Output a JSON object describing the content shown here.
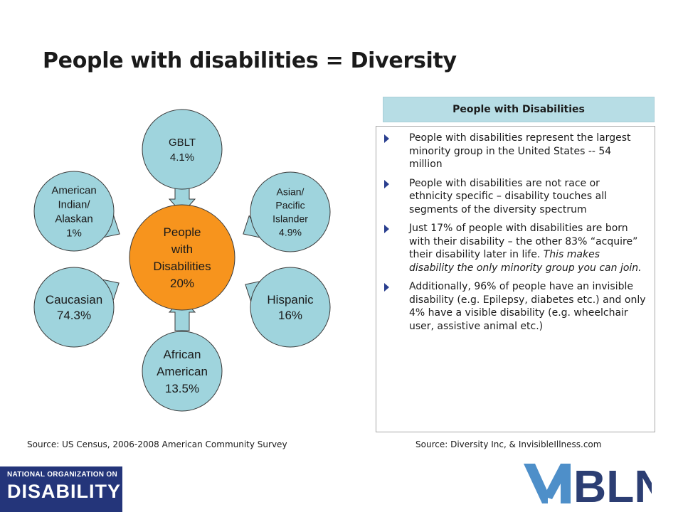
{
  "slide": {
    "title": "People with disabilities = Diversity"
  },
  "diagram": {
    "center": {
      "lines": [
        "People",
        "with",
        "Disabilities",
        "20%"
      ]
    },
    "nodes": [
      {
        "lines": [
          "GBLT",
          "4.1%"
        ]
      },
      {
        "lines": [
          "Asian/",
          "Pacific",
          "Islander",
          "4.9%"
        ]
      },
      {
        "lines": [
          "Hispanic",
          "16%"
        ]
      },
      {
        "lines": [
          "African",
          "American",
          "13.5%"
        ]
      },
      {
        "lines": [
          "Caucasian",
          "74.3%"
        ]
      },
      {
        "lines": [
          "American",
          "Indian/",
          "Alaskan",
          "1%"
        ]
      }
    ],
    "colors": {
      "center_fill": "#f7941d",
      "node_fill": "#9fd4dd",
      "arrow_fill": "#9fd4dd",
      "outline": "#3a3a3a"
    }
  },
  "panel": {
    "header": "People with Disabilities",
    "bullets": [
      {
        "text": "People with disabilities represent the largest minority group in the United States  -- 54 million",
        "italic": ""
      },
      {
        "text": "People with disabilities are not race or ethnicity specific – disability touches all segments of the diversity spectrum",
        "italic": ""
      },
      {
        "text": "Just 17% of people with disabilities are born with their disability – the other 83% “acquire” their disability later in life.  ",
        "italic": "This makes disability the only minority group you can join."
      },
      {
        "text": "Additionally, 96% of people have an invisible disability (e.g. Epilepsy, diabetes etc.) and  only 4% have a visible disability (e.g. wheelchair user, assistive animal etc.)",
        "italic": ""
      }
    ],
    "bullet_icon": "triangle-right-icon",
    "bullet_color": "#2a3f8f"
  },
  "sources": {
    "left": "Source: US Census, 2006-2008 American Community Survey",
    "right": "Source: Diversity Inc, & InvisibleIllness.com"
  },
  "logos": {
    "nod": {
      "top": "NATIONAL ORGANIZATION ON",
      "bottom_a": "DIS",
      "bottom_b": "ABILITY",
      "bg": "#24357a"
    },
    "vabln": {
      "text": "BLN",
      "color": "#2c3e73",
      "accent": "#4e8fc9"
    }
  }
}
